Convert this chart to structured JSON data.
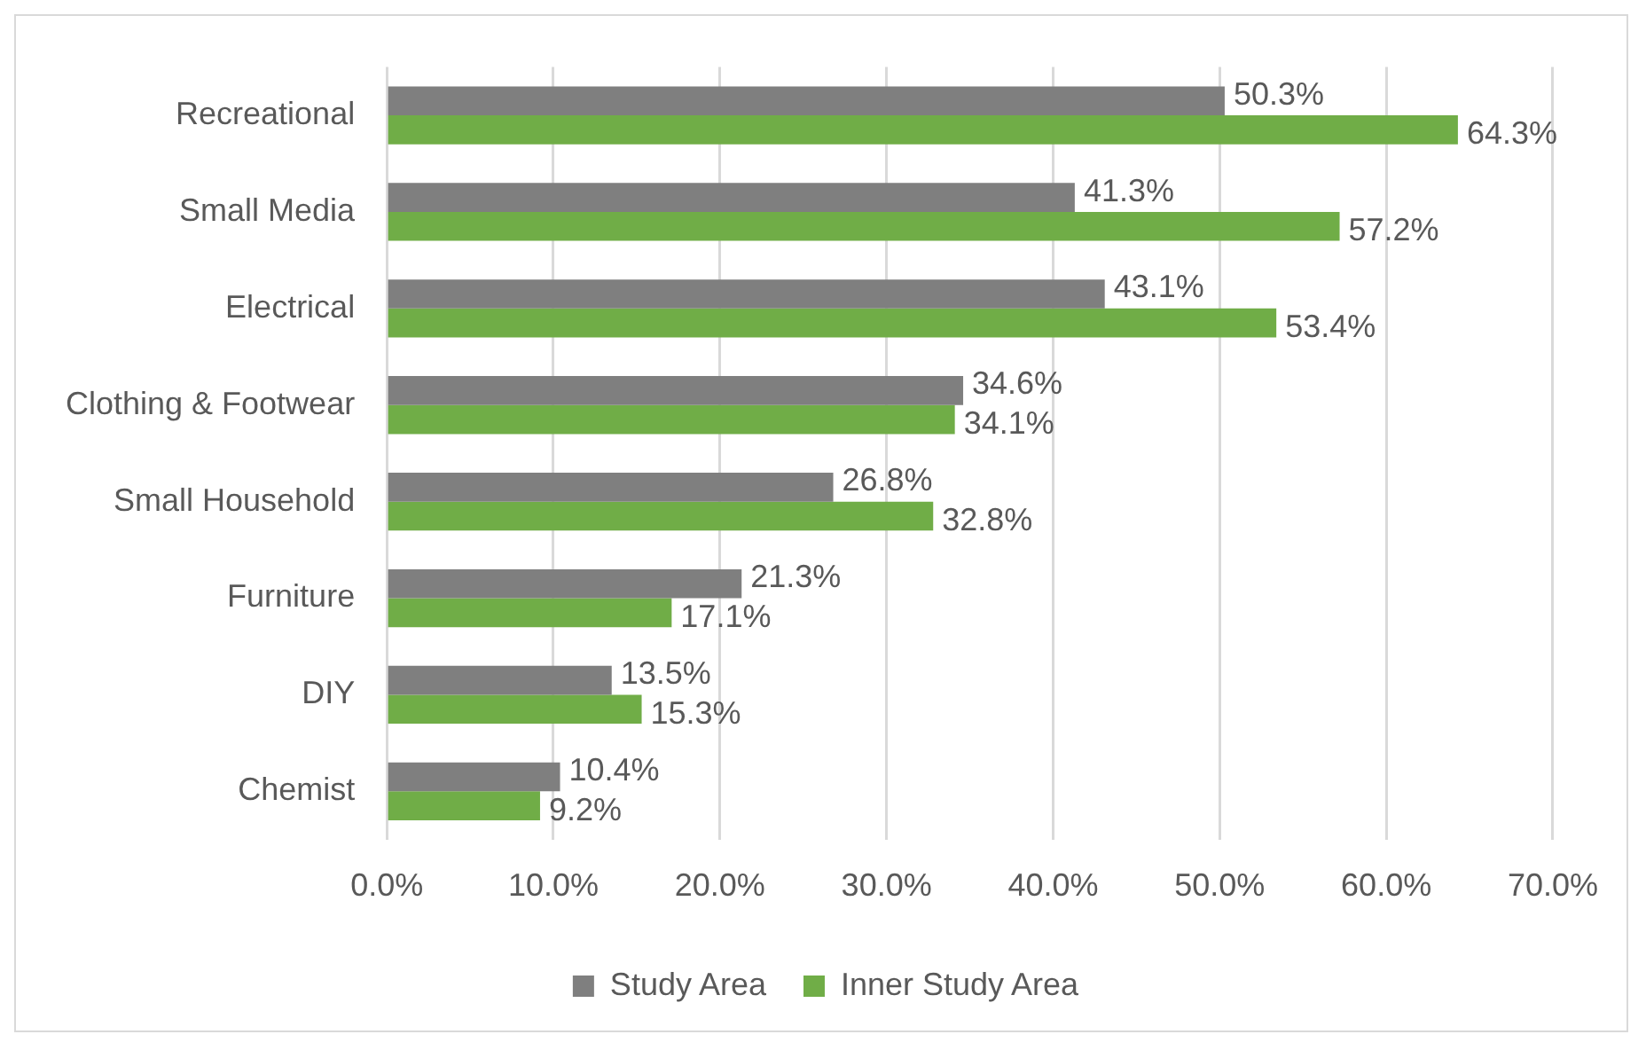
{
  "chart_data": {
    "type": "bar",
    "orientation": "horizontal",
    "categories": [
      "Recreational",
      "Small Media",
      "Electrical",
      "Clothing & Footwear",
      "Small Household",
      "Furniture",
      "DIY",
      "Chemist"
    ],
    "series": [
      {
        "name": "Study Area",
        "color": "#7f7f7f",
        "values": [
          50.3,
          41.3,
          43.1,
          34.6,
          26.8,
          21.3,
          13.5,
          10.4
        ],
        "value_labels": [
          "50.3%",
          "41.3%",
          "43.1%",
          "34.6%",
          "26.8%",
          "21.3%",
          "13.5%",
          "10.4%"
        ]
      },
      {
        "name": "Inner Study Area",
        "color": "#70ad47",
        "values": [
          64.3,
          57.2,
          53.4,
          34.1,
          32.8,
          17.1,
          15.3,
          9.2
        ],
        "value_labels": [
          "64.3%",
          "57.2%",
          "53.4%",
          "34.1%",
          "32.8%",
          "17.1%",
          "15.3%",
          "9.2%"
        ]
      }
    ],
    "xlim": [
      0,
      70
    ],
    "xticks": [
      {
        "value": 0,
        "label": "0.0%"
      },
      {
        "value": 10,
        "label": "10.0%"
      },
      {
        "value": 20,
        "label": "20.0%"
      },
      {
        "value": 30,
        "label": "30.0%"
      },
      {
        "value": 40,
        "label": "40.0%"
      },
      {
        "value": 50,
        "label": "50.0%"
      },
      {
        "value": 60,
        "label": "60.0%"
      },
      {
        "value": 70,
        "label": "70.0%"
      }
    ],
    "grid": "x",
    "legend": "bottom"
  }
}
